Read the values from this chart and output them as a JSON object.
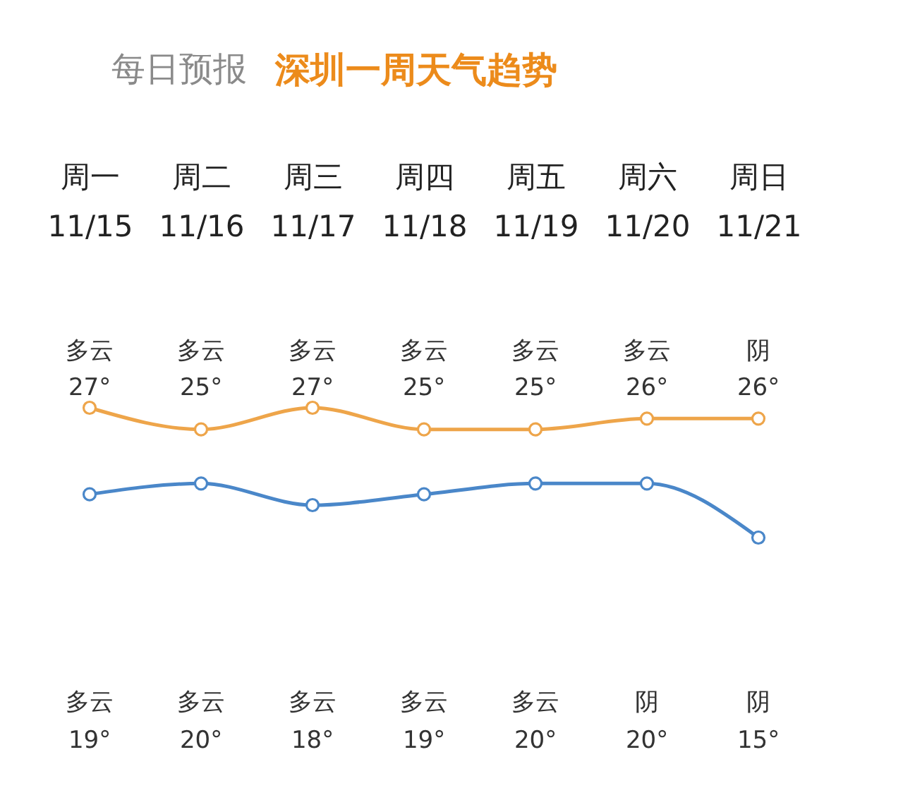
{
  "chart_data": {
    "type": "line",
    "title": "每日预报",
    "subtitle": "深圳一周天气趋势",
    "categories": [
      "周一\n11/15",
      "周二\n11/16",
      "周三\n11/17",
      "周四\n11/18",
      "周五\n11/19",
      "周六\n11/20",
      "周日\n11/21"
    ],
    "series": [
      {
        "color": "#eea54a",
        "values": [
          27,
          25,
          27,
          25,
          25,
          26,
          26
        ],
        "value_labels": [
          "27°",
          "25°",
          "27°",
          "25°",
          "25°",
          "26°",
          "26°"
        ]
      },
      {
        "color": "#4a87c9",
        "values": [
          19,
          20,
          18,
          19,
          20,
          20,
          15
        ],
        "value_labels": [
          "19°",
          "20°",
          "18°",
          "19°",
          "20°",
          "20°",
          "15°"
        ]
      }
    ],
    "tick_labels": "x",
    "marker": "circle",
    "line_style": "solid",
    "annotations": [
      "多云",
      "多云",
      "多云",
      "多云",
      "多云",
      "多云",
      "阴",
      "多云",
      "多云",
      "多云",
      "多云",
      "多云",
      "阴",
      "阴"
    ]
  }
}
